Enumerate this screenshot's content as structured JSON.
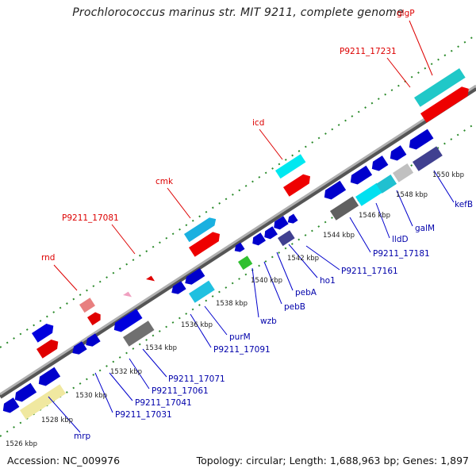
{
  "title": "Prochlorococcus marinus str. MIT 9211, complete genome",
  "accession": "Accession: NC_009976",
  "topology": "Topology: circular; Length: 1,688,963 bp; Genes: 1,897",
  "colors": {
    "backbone": "#909090",
    "track_dots": "#2a8a2a",
    "forward_label": "#dd0000",
    "reverse_label": "#0000aa"
  },
  "ticks": [
    "1526 kbp",
    "1528 kbp",
    "1530 kbp",
    "1532 kbp",
    "1534 kbp",
    "1536 kbp",
    "1538 kbp",
    "1540 kbp",
    "1542 kbp",
    "1544 kbp",
    "1546 kbp",
    "1548 kbp",
    "1550 kbp"
  ],
  "forward_labels": [
    "rnd",
    "P9211_17081",
    "cmk",
    "icd",
    "P9211_17231",
    "glgP"
  ],
  "reverse_labels": [
    "mrp",
    "P9211_17031",
    "P9211_17041",
    "P9211_17061",
    "P9211_17071",
    "P9211_17091",
    "purM",
    "wzb",
    "pebB",
    "pebA",
    "ho1",
    "P9211_17161",
    "P9211_17181",
    "lldD",
    "galM",
    "kefB"
  ]
}
